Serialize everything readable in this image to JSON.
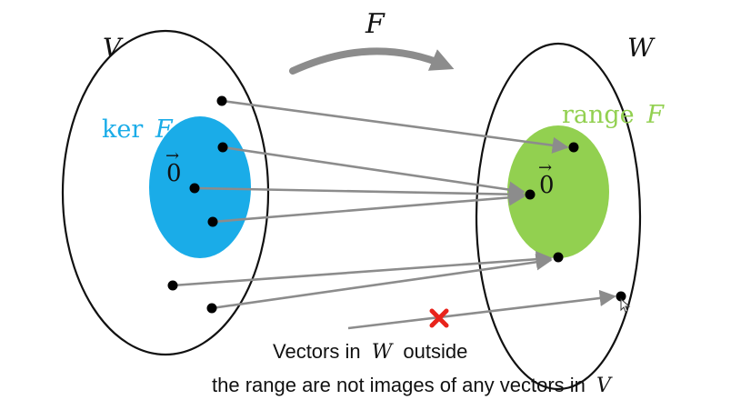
{
  "labels": {
    "map": "F",
    "domain": "V",
    "codomain": "W",
    "kernel_word": "ker",
    "kernel_symbol": "F",
    "range_word": "range",
    "range_symbol": "F",
    "zero_domain": "0",
    "zero_codomain": "0",
    "vector_arrow": "→"
  },
  "caption": {
    "line1_prefix": "Vectors in",
    "line1_symbol": "W",
    "line1_suffix": "outside",
    "line2_prefix": "the range are not images of any vectors in",
    "line2_symbol": "V"
  },
  "colors": {
    "kernel_fill": "#1aace8",
    "kernel_label": "#1aace8",
    "range_fill": "#92d050",
    "range_label": "#92d050",
    "arrow": "#8c8c8c",
    "outline": "#111111",
    "point": "#000000",
    "cross": "#e8241c"
  },
  "icons": {
    "invalid_mapping": "cross-icon"
  }
}
